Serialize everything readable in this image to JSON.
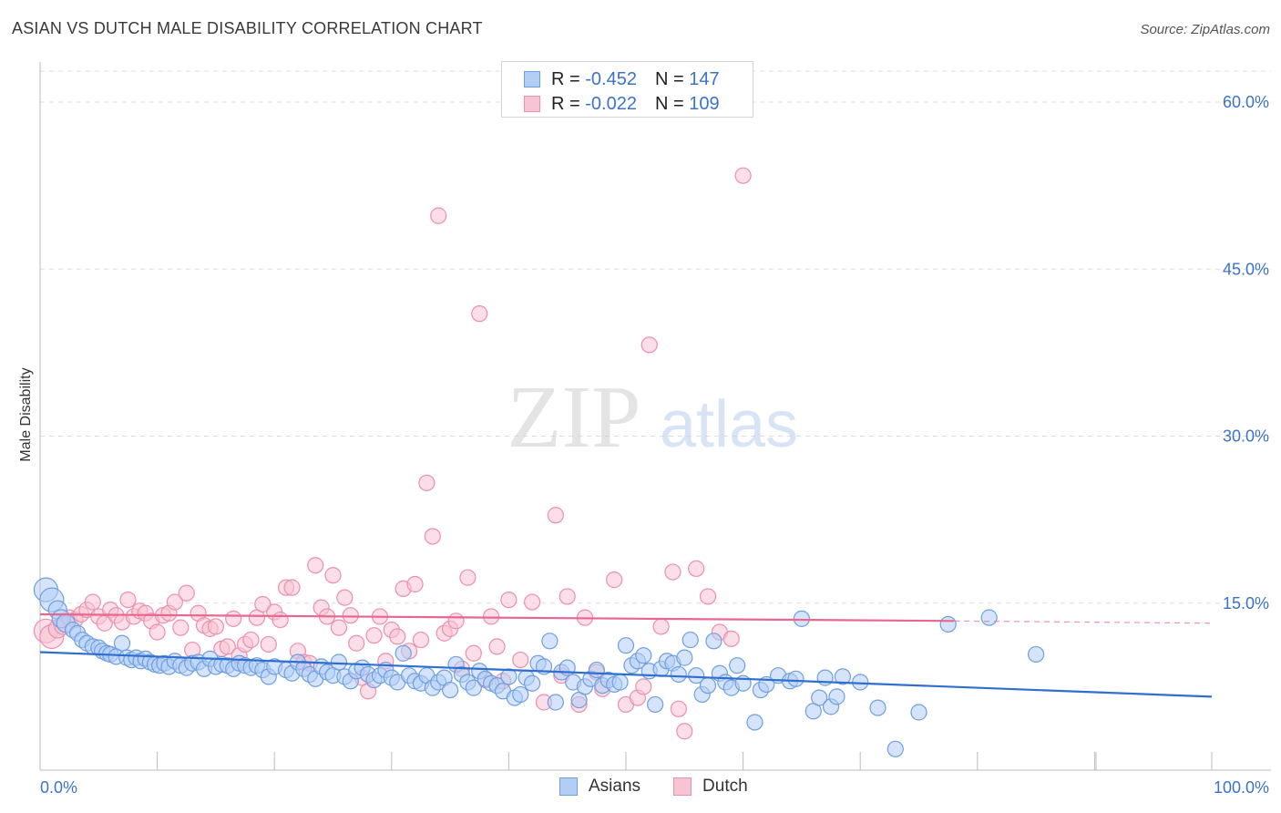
{
  "header": {
    "title": "ASIAN VS DUTCH MALE DISABILITY CORRELATION CHART",
    "source": "Source: ZipAtlas.com"
  },
  "watermark": {
    "zip": "ZIP",
    "atlas": "atlas"
  },
  "legend": {
    "asians": {
      "r_label": "R =",
      "r_value": "-0.452",
      "n_label": "N =",
      "n_value": "147"
    },
    "dutch": {
      "r_label": "R =",
      "r_value": "-0.022",
      "n_label": "N =",
      "n_value": "109"
    }
  },
  "colors": {
    "asian_fill": "#b3cef5",
    "asian_stroke": "#6f9fe0",
    "asian_line": "#2f6fd0",
    "dutch_fill": "#f8c3d3",
    "dutch_stroke": "#ec8fad",
    "dutch_line": "#e8668f",
    "tick_text": "#3b73c9",
    "grid": "#dddddd"
  },
  "chart_data": {
    "type": "scatter",
    "title": "ASIAN VS DUTCH MALE DISABILITY CORRELATION CHART",
    "xlabel": "",
    "ylabel": "Male Disability",
    "x_tick_labels": [
      "0.0%",
      "100.0%"
    ],
    "y_tick_labels": [
      "15.0%",
      "30.0%",
      "45.0%",
      "60.0%"
    ],
    "y_ticks": [
      15,
      30,
      45,
      60
    ],
    "xlim": [
      0,
      100
    ],
    "ylim": [
      0,
      63
    ],
    "grid": true,
    "legend_position": "top-center",
    "series": [
      {
        "name": "Asians",
        "r": -0.452,
        "n": 147,
        "trend": {
          "x": [
            0,
            100
          ],
          "y": [
            10.6,
            6.6
          ]
        },
        "points": [
          [
            0.5,
            16.2
          ],
          [
            1.0,
            15.3
          ],
          [
            1.5,
            14.4
          ],
          [
            1.8,
            13.6
          ],
          [
            2.2,
            13.2
          ],
          [
            2.8,
            12.6
          ],
          [
            3.2,
            12.3
          ],
          [
            3.6,
            11.7
          ],
          [
            4.0,
            11.4
          ],
          [
            4.5,
            11.1
          ],
          [
            5.0,
            11.0
          ],
          [
            5.3,
            10.7
          ],
          [
            5.7,
            10.5
          ],
          [
            6.0,
            10.4
          ],
          [
            6.5,
            10.2
          ],
          [
            7.0,
            11.4
          ],
          [
            7.4,
            10.1
          ],
          [
            7.8,
            9.9
          ],
          [
            8.2,
            10.1
          ],
          [
            8.6,
            9.8
          ],
          [
            9.0,
            10.0
          ],
          [
            9.4,
            9.7
          ],
          [
            9.8,
            9.5
          ],
          [
            10.2,
            9.4
          ],
          [
            10.6,
            9.6
          ],
          [
            11.0,
            9.3
          ],
          [
            11.5,
            9.8
          ],
          [
            12.0,
            9.4
          ],
          [
            12.5,
            9.2
          ],
          [
            13.0,
            9.6
          ],
          [
            13.5,
            9.7
          ],
          [
            14.0,
            9.1
          ],
          [
            14.5,
            10.0
          ],
          [
            15.0,
            9.3
          ],
          [
            15.5,
            9.5
          ],
          [
            16.0,
            9.4
          ],
          [
            16.5,
            9.1
          ],
          [
            17.0,
            9.6
          ],
          [
            17.5,
            9.4
          ],
          [
            18.0,
            9.2
          ],
          [
            18.5,
            9.4
          ],
          [
            19.0,
            9.0
          ],
          [
            19.5,
            8.4
          ],
          [
            20.0,
            9.3
          ],
          [
            21.0,
            9.0
          ],
          [
            21.5,
            8.7
          ],
          [
            22.0,
            9.7
          ],
          [
            22.5,
            9.1
          ],
          [
            23.0,
            8.6
          ],
          [
            23.5,
            8.2
          ],
          [
            24.0,
            9.3
          ],
          [
            24.5,
            8.8
          ],
          [
            25.0,
            8.5
          ],
          [
            25.5,
            9.7
          ],
          [
            26.0,
            8.4
          ],
          [
            26.5,
            8.0
          ],
          [
            27.0,
            8.9
          ],
          [
            27.5,
            9.2
          ],
          [
            28.0,
            8.6
          ],
          [
            28.5,
            8.1
          ],
          [
            29.0,
            8.5
          ],
          [
            29.5,
            9.0
          ],
          [
            30.0,
            8.3
          ],
          [
            30.5,
            7.9
          ],
          [
            31.0,
            10.5
          ],
          [
            31.5,
            8.5
          ],
          [
            32.0,
            8.0
          ],
          [
            32.5,
            7.8
          ],
          [
            33.0,
            8.5
          ],
          [
            33.5,
            7.4
          ],
          [
            34.0,
            7.9
          ],
          [
            34.5,
            8.3
          ],
          [
            35.0,
            7.2
          ],
          [
            35.5,
            9.5
          ],
          [
            36.0,
            8.6
          ],
          [
            36.5,
            7.9
          ],
          [
            37.0,
            7.4
          ],
          [
            37.5,
            8.9
          ],
          [
            38.0,
            8.2
          ],
          [
            38.5,
            7.8
          ],
          [
            39.0,
            7.6
          ],
          [
            39.5,
            7.1
          ],
          [
            40.0,
            8.4
          ],
          [
            40.5,
            6.5
          ],
          [
            41.0,
            6.8
          ],
          [
            41.5,
            8.3
          ],
          [
            42.0,
            7.8
          ],
          [
            42.5,
            9.6
          ],
          [
            43.0,
            9.3
          ],
          [
            43.5,
            11.6
          ],
          [
            44.0,
            6.1
          ],
          [
            44.5,
            8.8
          ],
          [
            45.0,
            9.2
          ],
          [
            45.5,
            7.9
          ],
          [
            46.0,
            6.3
          ],
          [
            46.5,
            7.5
          ],
          [
            47.0,
            8.2
          ],
          [
            47.5,
            9.0
          ],
          [
            48.0,
            7.6
          ],
          [
            48.5,
            8.1
          ],
          [
            49.0,
            7.7
          ],
          [
            49.5,
            7.9
          ],
          [
            50.0,
            11.2
          ],
          [
            50.5,
            9.4
          ],
          [
            51.0,
            9.8
          ],
          [
            51.5,
            10.3
          ],
          [
            52.0,
            8.9
          ],
          [
            52.5,
            5.9
          ],
          [
            53.0,
            9.1
          ],
          [
            53.5,
            9.8
          ],
          [
            54.0,
            9.6
          ],
          [
            54.5,
            8.6
          ],
          [
            55.0,
            10.1
          ],
          [
            55.5,
            11.7
          ],
          [
            56.0,
            8.5
          ],
          [
            56.5,
            6.8
          ],
          [
            57.0,
            7.6
          ],
          [
            57.5,
            11.6
          ],
          [
            58.0,
            8.7
          ],
          [
            58.5,
            7.9
          ],
          [
            59.0,
            7.4
          ],
          [
            59.5,
            9.4
          ],
          [
            60.0,
            7.8
          ],
          [
            61.0,
            4.3
          ],
          [
            61.5,
            7.2
          ],
          [
            62.0,
            7.7
          ],
          [
            63.0,
            8.5
          ],
          [
            64.0,
            8.0
          ],
          [
            64.5,
            8.2
          ],
          [
            65.0,
            13.6
          ],
          [
            66.0,
            5.3
          ],
          [
            66.5,
            6.5
          ],
          [
            67.0,
            8.3
          ],
          [
            67.5,
            5.7
          ],
          [
            68.0,
            6.6
          ],
          [
            68.5,
            8.4
          ],
          [
            70.0,
            7.9
          ],
          [
            71.5,
            5.6
          ],
          [
            73.0,
            1.9
          ],
          [
            75.0,
            5.2
          ],
          [
            77.5,
            13.1
          ],
          [
            81.0,
            13.7
          ],
          [
            85.0,
            10.4
          ]
        ]
      },
      {
        "name": "Dutch",
        "r": -0.022,
        "n": 109,
        "trend": {
          "x": [
            0,
            78,
            100
          ],
          "y": [
            14.0,
            13.4,
            13.2
          ]
        },
        "points": [
          [
            0.5,
            12.5
          ],
          [
            1.0,
            12.0
          ],
          [
            1.5,
            12.7
          ],
          [
            2.0,
            13.0
          ],
          [
            2.5,
            13.7
          ],
          [
            3.0,
            13.5
          ],
          [
            3.5,
            14.0
          ],
          [
            4.0,
            14.4
          ],
          [
            4.5,
            15.1
          ],
          [
            5.0,
            13.8
          ],
          [
            5.5,
            13.2
          ],
          [
            6.0,
            14.4
          ],
          [
            6.5,
            13.9
          ],
          [
            7.0,
            13.3
          ],
          [
            7.5,
            15.3
          ],
          [
            8.0,
            13.8
          ],
          [
            8.5,
            14.3
          ],
          [
            9.0,
            14.1
          ],
          [
            9.5,
            13.4
          ],
          [
            10.0,
            12.4
          ],
          [
            10.5,
            13.9
          ],
          [
            11.0,
            14.1
          ],
          [
            11.5,
            15.1
          ],
          [
            12.0,
            12.8
          ],
          [
            12.5,
            15.9
          ],
          [
            13.0,
            10.8
          ],
          [
            13.5,
            14.1
          ],
          [
            14.0,
            13.0
          ],
          [
            14.5,
            12.7
          ],
          [
            15.0,
            12.9
          ],
          [
            15.5,
            10.9
          ],
          [
            16.0,
            11.1
          ],
          [
            16.5,
            13.6
          ],
          [
            17.0,
            10.3
          ],
          [
            17.5,
            11.3
          ],
          [
            18.0,
            11.7
          ],
          [
            18.5,
            13.7
          ],
          [
            19.0,
            14.9
          ],
          [
            19.5,
            11.3
          ],
          [
            20.0,
            14.2
          ],
          [
            20.5,
            13.5
          ],
          [
            21.0,
            16.4
          ],
          [
            21.5,
            16.4
          ],
          [
            22.0,
            10.7
          ],
          [
            22.5,
            9.7
          ],
          [
            23.0,
            9.6
          ],
          [
            23.5,
            18.4
          ],
          [
            24.0,
            14.6
          ],
          [
            24.5,
            13.8
          ],
          [
            25.0,
            17.5
          ],
          [
            25.5,
            12.8
          ],
          [
            26.0,
            15.5
          ],
          [
            26.5,
            13.9
          ],
          [
            27.0,
            11.4
          ],
          [
            27.5,
            8.3
          ],
          [
            28.0,
            7.1
          ],
          [
            28.5,
            12.1
          ],
          [
            29.0,
            13.8
          ],
          [
            29.5,
            9.8
          ],
          [
            30.0,
            12.6
          ],
          [
            30.5,
            12.0
          ],
          [
            31.0,
            16.3
          ],
          [
            31.5,
            10.7
          ],
          [
            32.0,
            16.7
          ],
          [
            32.5,
            11.7
          ],
          [
            33.0,
            25.8
          ],
          [
            33.5,
            21.0
          ],
          [
            34.0,
            49.8
          ],
          [
            34.5,
            12.3
          ],
          [
            35.0,
            12.7
          ],
          [
            35.5,
            13.4
          ],
          [
            36.0,
            9.1
          ],
          [
            36.5,
            17.3
          ],
          [
            37.0,
            10.5
          ],
          [
            37.5,
            41.0
          ],
          [
            38.0,
            8.1
          ],
          [
            38.5,
            13.8
          ],
          [
            39.0,
            11.1
          ],
          [
            39.5,
            8.0
          ],
          [
            40.0,
            15.3
          ],
          [
            41.0,
            9.9
          ],
          [
            42.0,
            15.1
          ],
          [
            43.0,
            6.1
          ],
          [
            44.0,
            22.9
          ],
          [
            44.5,
            8.5
          ],
          [
            45.0,
            15.6
          ],
          [
            46.0,
            5.9
          ],
          [
            46.5,
            13.7
          ],
          [
            47.5,
            8.8
          ],
          [
            48.0,
            7.3
          ],
          [
            49.0,
            17.1
          ],
          [
            50.0,
            5.9
          ],
          [
            51.0,
            6.5
          ],
          [
            51.5,
            7.5
          ],
          [
            52.0,
            38.2
          ],
          [
            53.0,
            12.9
          ],
          [
            54.0,
            17.8
          ],
          [
            54.5,
            5.5
          ],
          [
            55.0,
            3.5
          ],
          [
            56.0,
            18.1
          ],
          [
            57.0,
            15.6
          ],
          [
            58.0,
            12.4
          ],
          [
            59.0,
            11.8
          ],
          [
            60.0,
            53.4
          ]
        ]
      }
    ]
  }
}
